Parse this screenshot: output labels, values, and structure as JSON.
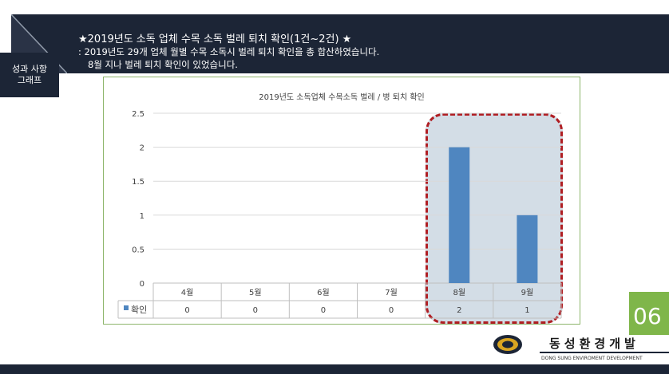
{
  "header": {
    "title": "★2019년도 소독 업체 수목 소독 벌레 퇴치 확인(1건~2건) ★",
    "line1": ": 2019년도 29개 업체 월별 수목 소독시 벌레 퇴치 확인을 총 합산하였습니다.",
    "line2": "8월 지나 벌레 퇴치 확인이 있었습니다."
  },
  "sidetab": {
    "line1": "성과 사항",
    "line2": "그래프"
  },
  "chart_data": {
    "type": "bar",
    "title": "2019년도 소독업체 수목소독 벌레 / 병 퇴치 확인",
    "categories": [
      "4월",
      "5월",
      "6월",
      "7월",
      "8월",
      "9월"
    ],
    "series": [
      {
        "name": "확인",
        "values": [
          0,
          0,
          0,
          0,
          2,
          1
        ]
      }
    ],
    "ylim": [
      0,
      2.5
    ],
    "yticks": [
      "0",
      "0.5",
      "1",
      "1.5",
      "2",
      "2.5"
    ],
    "ytick_values": [
      0,
      0.5,
      1,
      1.5,
      2,
      2.5
    ],
    "table_values": [
      "0",
      "0",
      "0",
      "0",
      "2",
      "1"
    ],
    "highlighted_categories": [
      "8월",
      "9월"
    ],
    "grid": true,
    "legend": "data-table",
    "bar_color": "#4f86c0"
  },
  "page_number": "06",
  "logo": {
    "name_kr": "동성환경개발",
    "name_en": "DONG SUNG ENVIROMENT DEVELOPMENT"
  },
  "colors": {
    "navy": "#1c2536",
    "green": "#7fb64a",
    "highlight_border": "#b01e23",
    "highlight_fill": "#d3dde6"
  }
}
